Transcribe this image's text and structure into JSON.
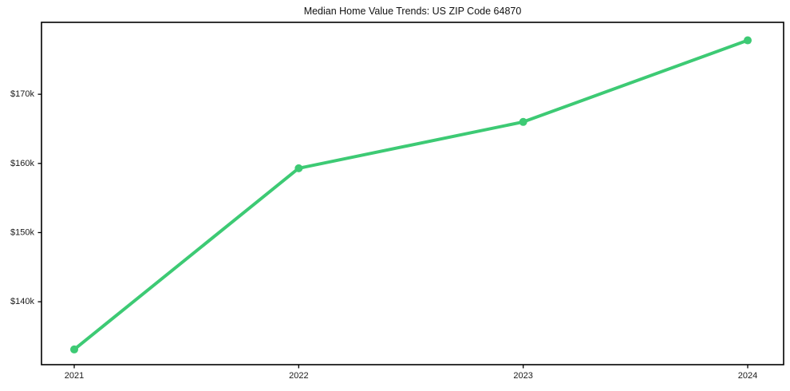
{
  "chart_data": {
    "type": "line",
    "title": "Median Home Value Trends: US ZIP Code 64870",
    "categories": [
      "2021",
      "2022",
      "2023",
      "2024"
    ],
    "series": [
      {
        "name": "Median Home Value",
        "values": [
          133100,
          159300,
          166000,
          177800
        ]
      }
    ],
    "xlabel": "",
    "ylabel": "",
    "ytick_values": [
      140000,
      150000,
      160000,
      170000
    ],
    "ytick_labels": [
      "$140k",
      "$150k",
      "$160k",
      "$170k"
    ],
    "ylim": [
      130900,
      180400
    ],
    "grid": false,
    "legend": false,
    "line_color": "#3dca74",
    "marker": "circle",
    "axis_color": "#000000",
    "text_color": "#1a1a1a",
    "background": "#ffffff"
  }
}
